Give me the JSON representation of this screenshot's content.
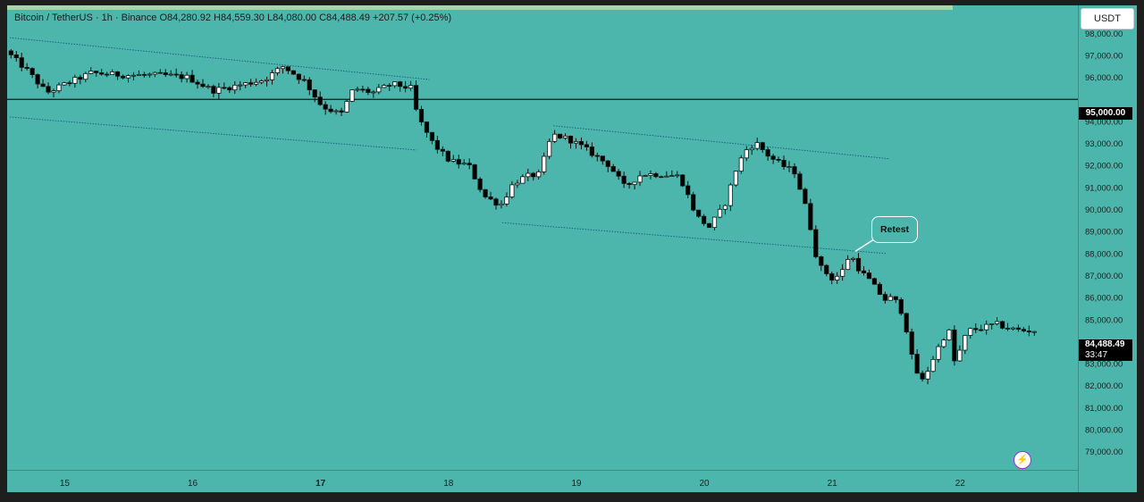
{
  "legend": {
    "symbol": "Bitcoin / TetherUS · 1h · Binance",
    "open": "O84,280.92",
    "high": "H84,559.30",
    "low": "L84,080.00",
    "close": "C84,488.49",
    "change": "+207.57 (+0.25%)"
  },
  "currency_button": "USDT",
  "last_price_label": "84,488.49",
  "countdown_label": "33:47",
  "pinned_level_label": "95,000.00",
  "annotation": "Retest",
  "colors": {
    "background": "#4db6ac",
    "up_candle": "#ffffff",
    "down_candle": "#000000",
    "wick": "#111111",
    "top_strip": "#a5d6a7"
  },
  "chart_data": {
    "type": "candlestick",
    "title": "",
    "interval": "1h",
    "x_labels": [
      "15",
      "16",
      "17",
      "18",
      "19",
      "20",
      "21",
      "22"
    ],
    "y_tick_labels": [
      "98,000.00",
      "97,000.00",
      "96,000.00",
      "94,000.00",
      "93,000.00",
      "92,000.00",
      "91,000.00",
      "90,000.00",
      "89,000.00",
      "88,000.00",
      "87,000.00",
      "86,000.00",
      "85,000.00",
      "83,000.00",
      "82,000.00",
      "81,000.00",
      "80,000.00",
      "79,000.00"
    ],
    "y_ticks": [
      98000,
      97000,
      96000,
      94000,
      93000,
      92000,
      91000,
      90000,
      89000,
      88000,
      87000,
      86000,
      85000,
      83000,
      82000,
      81000,
      80000,
      79000
    ],
    "ylim": [
      78500,
      98700
    ],
    "xlim": [
      14.55,
      22.92
    ],
    "horizontal_level": 95000,
    "last_price": 84488.49,
    "anchor_points": [
      [
        14.58,
        97200
      ],
      [
        14.75,
        96300
      ],
      [
        14.9,
        95300
      ],
      [
        15.05,
        95700
      ],
      [
        15.25,
        96200
      ],
      [
        15.5,
        96100
      ],
      [
        15.8,
        96100
      ],
      [
        16.0,
        96000
      ],
      [
        16.2,
        95400
      ],
      [
        16.45,
        95700
      ],
      [
        16.6,
        95900
      ],
      [
        16.75,
        96500
      ],
      [
        16.92,
        95800
      ],
      [
        17.05,
        94700
      ],
      [
        17.2,
        94300
      ],
      [
        17.3,
        95500
      ],
      [
        17.45,
        95300
      ],
      [
        17.6,
        95700
      ],
      [
        17.75,
        95500
      ],
      [
        17.8,
        94200
      ],
      [
        17.92,
        93000
      ],
      [
        18.05,
        92200
      ],
      [
        18.2,
        92000
      ],
      [
        18.32,
        90600
      ],
      [
        18.45,
        90200
      ],
      [
        18.55,
        91200
      ],
      [
        18.65,
        91500
      ],
      [
        18.75,
        91600
      ],
      [
        18.85,
        93400
      ],
      [
        18.98,
        93200
      ],
      [
        19.1,
        92800
      ],
      [
        19.3,
        92000
      ],
      [
        19.42,
        91000
      ],
      [
        19.55,
        91600
      ],
      [
        19.7,
        91600
      ],
      [
        19.85,
        91500
      ],
      [
        19.98,
        89700
      ],
      [
        20.08,
        89200
      ],
      [
        20.2,
        90200
      ],
      [
        20.3,
        92000
      ],
      [
        20.38,
        92800
      ],
      [
        20.45,
        93000
      ],
      [
        20.55,
        92400
      ],
      [
        20.65,
        92000
      ],
      [
        20.75,
        91700
      ],
      [
        20.85,
        89800
      ],
      [
        20.93,
        87500
      ],
      [
        21.05,
        86800
      ],
      [
        21.12,
        87200
      ],
      [
        21.18,
        88000
      ],
      [
        21.26,
        87200
      ],
      [
        21.33,
        86800
      ],
      [
        21.45,
        85900
      ],
      [
        21.52,
        86000
      ],
      [
        21.6,
        85200
      ],
      [
        21.68,
        82800
      ],
      [
        21.75,
        82200
      ],
      [
        21.85,
        83500
      ],
      [
        21.95,
        84600
      ],
      [
        22.0,
        83000
      ],
      [
        22.1,
        84500
      ],
      [
        22.2,
        84600
      ],
      [
        22.32,
        84800
      ],
      [
        22.42,
        84600
      ],
      [
        22.52,
        84500
      ],
      [
        22.58,
        84500
      ]
    ],
    "upper_trend_line": [
      [
        14.57,
        97800
      ],
      [
        17.85,
        95900
      ]
    ],
    "lower_trend_line": [
      [
        14.57,
        94200
      ],
      [
        17.75,
        92700
      ]
    ],
    "upper_trend_line_2": [
      [
        18.82,
        93800
      ],
      [
        21.45,
        92300
      ]
    ],
    "lower_trend_line_2": [
      [
        18.42,
        89400
      ],
      [
        21.42,
        88000
      ]
    ],
    "retest_point": [
      21.18,
      88100
    ]
  }
}
